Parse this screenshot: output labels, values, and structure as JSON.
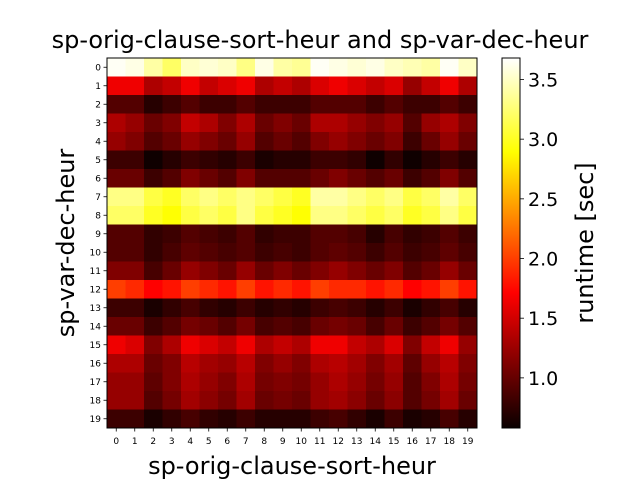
{
  "chart_data": {
    "type": "heatmap",
    "title": "sp-orig-clause-sort-heur and sp-var-dec-heur",
    "xlabel": "sp-orig-clause-sort-heur",
    "ylabel": "sp-var-dec-heur",
    "x_ticks": [
      "0",
      "1",
      "2",
      "3",
      "4",
      "5",
      "6",
      "7",
      "8",
      "9",
      "10",
      "11",
      "12",
      "13",
      "14",
      "15",
      "16",
      "17",
      "18",
      "19"
    ],
    "y_ticks": [
      "0",
      "1",
      "2",
      "3",
      "4",
      "5",
      "6",
      "7",
      "8",
      "9",
      "10",
      "11",
      "12",
      "13",
      "14",
      "15",
      "16",
      "17",
      "18",
      "19"
    ],
    "colorbar": {
      "label": "runtime [sec]",
      "colormap": "hot",
      "vmin": 0.58,
      "vmax": 3.68,
      "ticks": [
        1.0,
        1.5,
        2.0,
        2.5,
        3.0,
        3.5
      ],
      "tick_labels": [
        "1.0",
        "1.5",
        "2.0",
        "2.5",
        "3.0",
        "3.5"
      ]
    },
    "values": [
      [
        3.65,
        3.6,
        3.4,
        3.2,
        3.5,
        3.55,
        3.5,
        3.3,
        3.6,
        3.4,
        3.35,
        3.65,
        3.6,
        3.55,
        3.6,
        3.5,
        3.45,
        3.4,
        3.65,
        3.5
      ],
      [
        1.6,
        1.6,
        1.3,
        1.4,
        1.6,
        1.4,
        1.5,
        1.6,
        1.3,
        1.4,
        1.3,
        1.5,
        1.6,
        1.5,
        1.4,
        1.5,
        1.2,
        1.4,
        1.6,
        1.3
      ],
      [
        0.9,
        0.9,
        0.7,
        0.8,
        0.9,
        0.8,
        0.8,
        0.9,
        0.8,
        0.8,
        0.8,
        0.9,
        0.9,
        0.9,
        0.8,
        0.9,
        0.8,
        0.8,
        0.9,
        0.8
      ],
      [
        1.3,
        1.2,
        1.0,
        1.1,
        1.4,
        1.3,
        1.1,
        1.3,
        1.0,
        1.1,
        1.0,
        1.3,
        1.3,
        1.2,
        1.1,
        1.2,
        0.9,
        1.2,
        1.3,
        1.1
      ],
      [
        1.2,
        1.1,
        0.9,
        1.0,
        1.2,
        1.1,
        1.0,
        1.2,
        0.9,
        1.0,
        0.9,
        1.1,
        1.2,
        1.1,
        1.0,
        1.1,
        0.8,
        1.0,
        1.2,
        1.0
      ],
      [
        0.8,
        0.8,
        0.6,
        0.7,
        0.8,
        0.75,
        0.7,
        0.8,
        0.65,
        0.7,
        0.7,
        0.8,
        0.8,
        0.75,
        0.6,
        0.75,
        0.6,
        0.7,
        0.8,
        0.7
      ],
      [
        1.0,
        1.0,
        0.8,
        0.9,
        1.1,
        1.0,
        0.9,
        1.1,
        0.9,
        0.9,
        0.9,
        1.0,
        1.1,
        1.0,
        0.9,
        1.0,
        0.8,
        0.9,
        1.1,
        0.9
      ],
      [
        3.3,
        3.3,
        3.1,
        3.0,
        3.2,
        3.3,
        3.2,
        3.3,
        3.2,
        3.1,
        3.0,
        3.4,
        3.4,
        3.3,
        3.2,
        3.3,
        3.1,
        3.2,
        3.4,
        3.2
      ],
      [
        3.2,
        3.2,
        3.0,
        2.9,
        3.1,
        3.2,
        3.1,
        3.3,
        3.1,
        3.0,
        2.9,
        3.3,
        3.3,
        3.2,
        3.1,
        3.2,
        3.0,
        3.1,
        3.3,
        3.1
      ],
      [
        0.9,
        0.9,
        0.75,
        0.8,
        0.9,
        0.85,
        0.8,
        0.9,
        0.75,
        0.8,
        0.8,
        0.9,
        0.9,
        0.85,
        0.7,
        0.85,
        0.75,
        0.8,
        0.9,
        0.8
      ],
      [
        0.9,
        0.9,
        0.75,
        0.85,
        0.95,
        0.9,
        0.85,
        0.9,
        0.8,
        0.85,
        0.8,
        0.9,
        0.95,
        0.9,
        0.8,
        0.9,
        0.8,
        0.85,
        0.95,
        0.85
      ],
      [
        1.1,
        1.1,
        0.85,
        1.0,
        1.2,
        1.1,
        1.0,
        1.2,
        1.0,
        1.1,
        1.0,
        1.1,
        1.2,
        1.1,
        1.0,
        1.1,
        0.9,
        1.0,
        1.2,
        1.0
      ],
      [
        2.0,
        1.9,
        1.7,
        1.8,
        2.0,
        1.9,
        1.8,
        2.0,
        1.8,
        1.9,
        1.8,
        2.0,
        1.9,
        1.9,
        1.8,
        1.9,
        1.7,
        1.8,
        2.0,
        1.8
      ],
      [
        0.8,
        0.8,
        0.65,
        0.75,
        0.85,
        0.75,
        0.7,
        0.8,
        0.7,
        0.75,
        0.7,
        0.8,
        0.85,
        0.8,
        0.7,
        0.8,
        0.65,
        0.75,
        0.85,
        0.7
      ],
      [
        1.0,
        1.0,
        0.8,
        0.9,
        1.05,
        1.0,
        0.9,
        1.05,
        0.85,
        0.9,
        0.85,
        1.0,
        1.05,
        1.0,
        0.85,
        1.0,
        0.8,
        0.9,
        1.05,
        0.9
      ],
      [
        1.6,
        1.5,
        1.1,
        1.3,
        1.6,
        1.5,
        1.4,
        1.6,
        1.3,
        1.4,
        1.3,
        1.6,
        1.6,
        1.4,
        1.3,
        1.5,
        1.1,
        1.4,
        1.6,
        1.2
      ],
      [
        1.3,
        1.3,
        1.0,
        1.1,
        1.35,
        1.25,
        1.2,
        1.35,
        1.1,
        1.2,
        1.1,
        1.3,
        1.35,
        1.25,
        1.1,
        1.25,
        0.95,
        1.2,
        1.35,
        1.1
      ],
      [
        1.2,
        1.2,
        0.95,
        1.1,
        1.3,
        1.2,
        1.1,
        1.3,
        1.05,
        1.1,
        1.05,
        1.2,
        1.3,
        1.2,
        1.05,
        1.2,
        0.9,
        1.1,
        1.3,
        1.05
      ],
      [
        1.2,
        1.2,
        0.9,
        1.05,
        1.25,
        1.15,
        1.05,
        1.25,
        1.0,
        1.05,
        1.0,
        1.2,
        1.25,
        1.15,
        1.0,
        1.15,
        0.9,
        1.05,
        1.25,
        1.0
      ],
      [
        0.8,
        0.8,
        0.65,
        0.75,
        0.85,
        0.75,
        0.7,
        0.8,
        0.7,
        0.7,
        0.7,
        0.8,
        0.85,
        0.75,
        0.65,
        0.8,
        0.65,
        0.7,
        0.85,
        0.7
      ]
    ]
  }
}
